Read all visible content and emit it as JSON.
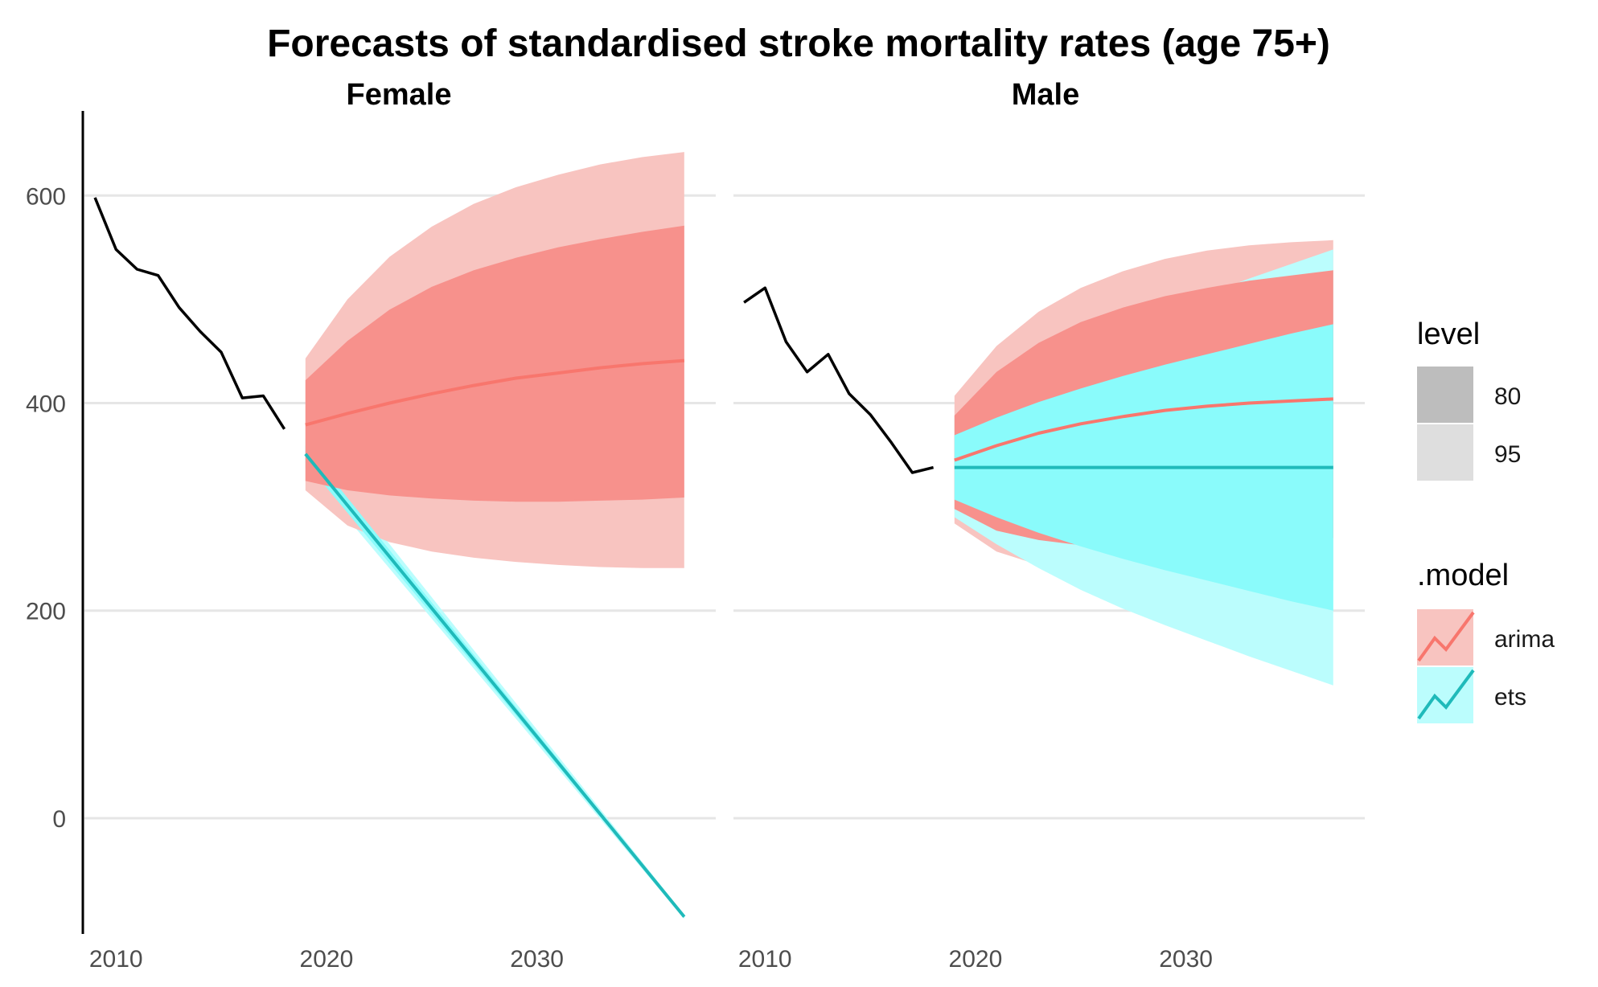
{
  "chart_data": {
    "type": "line",
    "title": "Forecasts of standardised stroke mortality rates (age 75+)",
    "xlabel": "",
    "ylabel": "",
    "grid": true,
    "x_ticks": [
      2010,
      2020,
      2030
    ],
    "y_ticks": [
      0,
      200,
      400,
      600
    ],
    "xlim": [
      2008.5,
      2038.5
    ],
    "ylim": [
      -110,
      680
    ],
    "legend": {
      "position": "right",
      "level_title": "level",
      "levels": [
        "80",
        "95"
      ],
      "model_title": ".model",
      "models": [
        {
          "name": "arima",
          "line_color": "#F8766D",
          "fill_color": "#F8C4C0"
        },
        {
          "name": "ets",
          "line_color": "#1FBABA",
          "fill_color": "#BBFDFD"
        }
      ]
    },
    "colors": {
      "history": "#000000",
      "arima_80": "#F7918C",
      "arima_95": "#F8C4C0",
      "ets_80": "#8AFBFB",
      "ets_95": "#BBFDFD"
    },
    "panels": [
      {
        "name": "Female",
        "history": {
          "x": [
            2009,
            2010,
            2011,
            2012,
            2013,
            2014,
            2015,
            2016,
            2017,
            2018
          ],
          "y": [
            598,
            548,
            529,
            523,
            492,
            469,
            449,
            405,
            407,
            375
          ]
        },
        "forecasts": [
          {
            "model": "arima",
            "x": [
              2019,
              2021,
              2023,
              2025,
              2027,
              2029,
              2031,
              2033,
              2035,
              2037
            ],
            "mean": [
              379,
              390,
              400,
              409,
              417,
              424,
              429,
              434,
              438,
              441
            ],
            "lo80": [
              325,
              316,
              311,
              308,
              306,
              305,
              305,
              306,
              307,
              309
            ],
            "hi80": [
              422,
              460,
              490,
              512,
              528,
              540,
              550,
              558,
              565,
              571
            ],
            "lo95": [
              316,
              282,
              266,
              257,
              251,
              247,
              244,
              242,
              241,
              241
            ],
            "hi95": [
              443,
              500,
              541,
              570,
              592,
              608,
              620,
              630,
              637,
              642
            ]
          },
          {
            "model": "ets",
            "x": [
              2019,
              2037
            ],
            "mean": [
              351,
              -95
            ],
            "lo80": [
              343,
              -96
            ],
            "hi80": [
              359,
              -94
            ],
            "lo95": [
              337,
              -97
            ],
            "hi95": [
              366,
              -93
            ]
          }
        ]
      },
      {
        "name": "Male",
        "history": {
          "x": [
            2009,
            2010,
            2011,
            2012,
            2013,
            2014,
            2015,
            2016,
            2017,
            2018
          ],
          "y": [
            497,
            511,
            459,
            430,
            447,
            409,
            389,
            362,
            333,
            338
          ]
        },
        "forecasts": [
          {
            "model": "arima",
            "x": [
              2019,
              2021,
              2023,
              2025,
              2027,
              2029,
              2031,
              2033,
              2035,
              2037
            ],
            "mean": [
              345,
              359,
              371,
              380,
              387,
              393,
              397,
              400,
              402,
              404
            ],
            "lo80": [
              298,
              277,
              268,
              263,
              262,
              262,
              263,
              265,
              267,
              270
            ],
            "hi80": [
              388,
              430,
              458,
              478,
              492,
              503,
              511,
              518,
              523,
              528
            ],
            "lo95": [
              284,
              257,
              244,
              236,
              231,
              229,
              228,
              228,
              228,
              229
            ],
            "hi95": [
              407,
              455,
              488,
              511,
              527,
              539,
              547,
              552,
              555,
              557
            ]
          },
          {
            "model": "ets",
            "x": [
              2019,
              2021,
              2023,
              2025,
              2027,
              2029,
              2031,
              2033,
              2035,
              2037
            ],
            "mean": [
              338,
              338,
              338,
              338,
              338,
              338,
              338,
              338,
              338,
              338
            ],
            "lo80": [
              307,
              290,
              275,
              262,
              250,
              239,
              229,
              219,
              209,
              200
            ],
            "hi80": [
              369,
              386,
              401,
              414,
              426,
              437,
              447,
              457,
              467,
              476
            ],
            "lo95": [
              290,
              264,
              241,
              220,
              202,
              186,
              171,
              156,
              142,
              128
            ],
            "hi95": [
              386,
              412,
              435,
              456,
              474,
              490,
              505,
              520,
              534,
              548
            ]
          }
        ]
      }
    ]
  }
}
